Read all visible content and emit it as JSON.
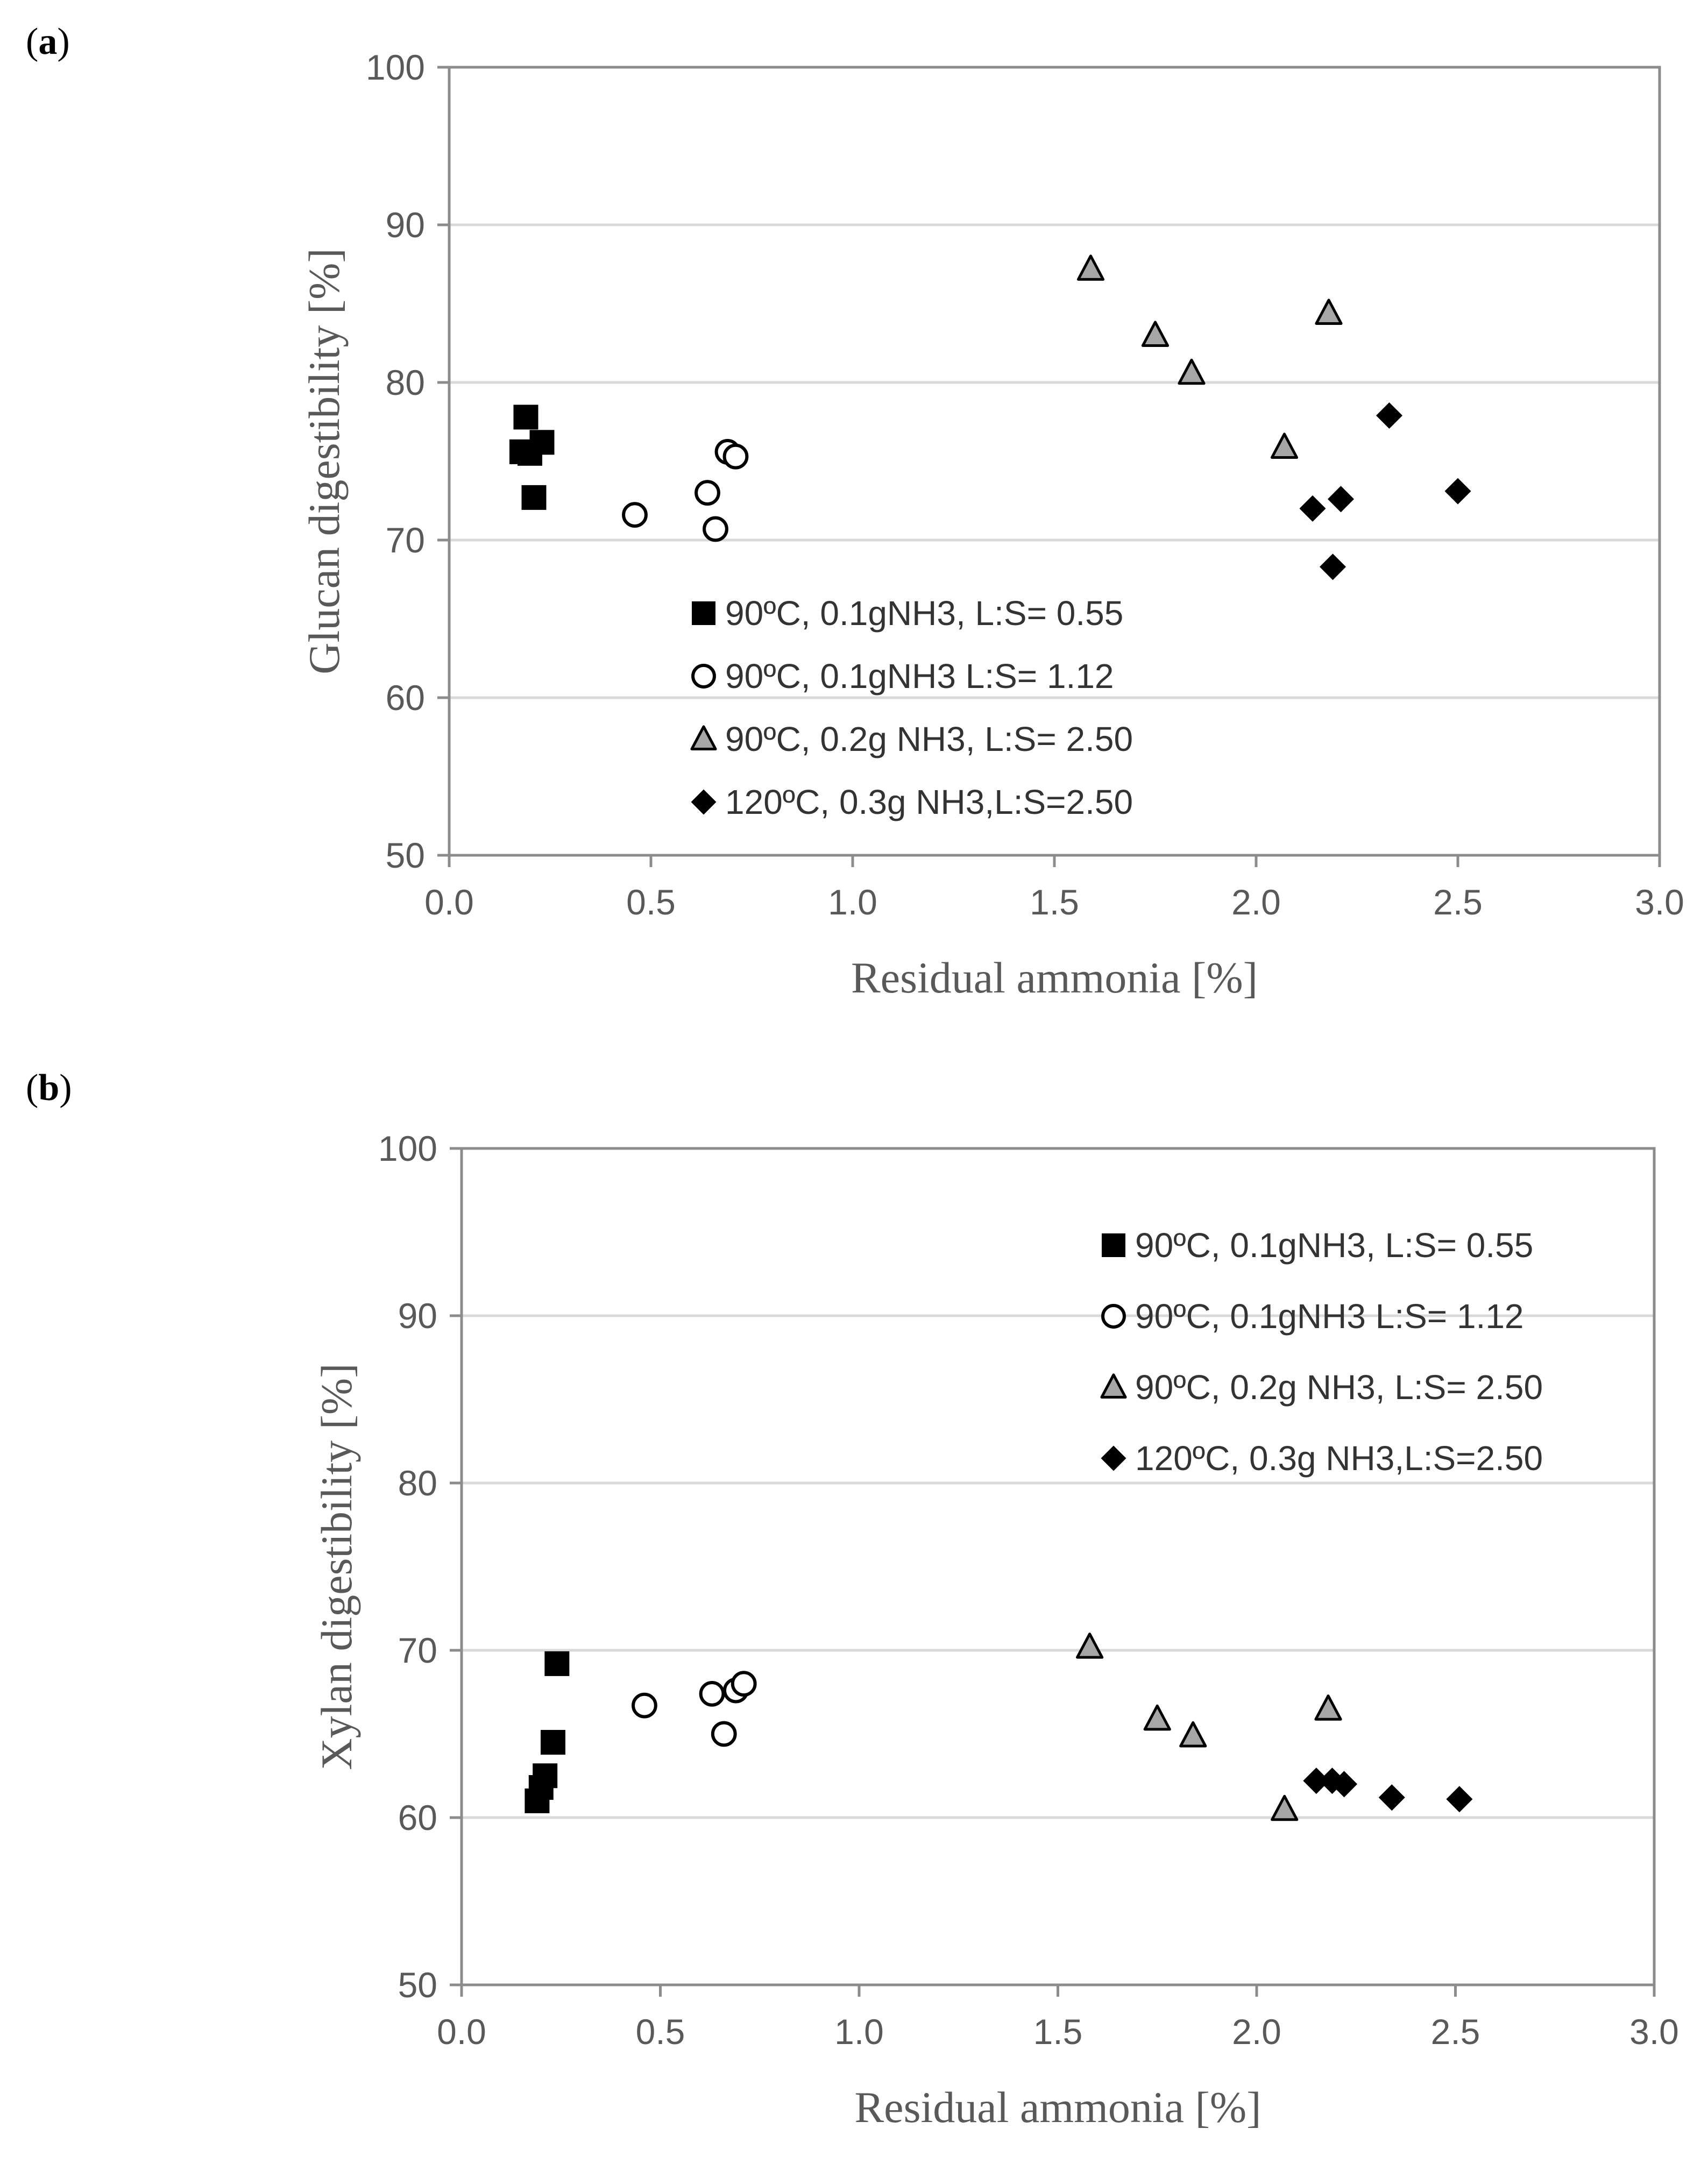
{
  "figure": {
    "panel_a_label": "a",
    "panel_b_label": "b"
  },
  "chart_data": [
    {
      "type": "scatter",
      "id": "a",
      "title": "",
      "xlabel": "Residual ammonia [%]",
      "ylabel": "Glucan digestibility [%]",
      "xlim": [
        0,
        3
      ],
      "ylim": [
        50,
        100
      ],
      "xticks": [
        0.0,
        0.5,
        1.0,
        1.5,
        2.0,
        2.5,
        3.0
      ],
      "xtick_labels": [
        "0.0",
        "0.5",
        "1.0",
        "1.5",
        "2.0",
        "2.5",
        "3.0"
      ],
      "yticks": [
        50,
        60,
        70,
        80,
        90,
        100
      ],
      "ytick_labels": [
        "50",
        "60",
        "70",
        "80",
        "90",
        "100"
      ],
      "grid": "horizontal",
      "legend_position": "center-bottom",
      "series": [
        {
          "name": "90ºC, 0.1gNH3, L:S= 0.55",
          "marker": "square",
          "fill": "#000000",
          "x": [
            0.19,
            0.2,
            0.18,
            0.23,
            0.21
          ],
          "y": [
            77.8,
            75.5,
            75.6,
            76.2,
            72.7
          ]
        },
        {
          "name": "90ºC, 0.1gNH3 L:S= 1.12",
          "marker": "circle",
          "fill": "#ffffff",
          "x": [
            0.46,
            0.64,
            0.66,
            0.69,
            0.71
          ],
          "y": [
            71.6,
            73.0,
            70.7,
            75.6,
            75.3
          ]
        },
        {
          "name": "90ºC, 0.2g NH3, L:S= 2.50",
          "marker": "triangle",
          "fill": "#a6a6a6",
          "x": [
            1.59,
            1.75,
            1.84,
            2.07,
            2.18
          ],
          "y": [
            87.2,
            83.0,
            80.6,
            75.9,
            84.4
          ]
        },
        {
          "name": "120ºC, 0.3g NH3,L:S=2.50",
          "marker": "diamond",
          "fill": "#000000",
          "x": [
            2.14,
            2.19,
            2.21,
            2.33,
            2.5
          ],
          "y": [
            72.0,
            68.3,
            72.6,
            77.9,
            73.1
          ]
        }
      ]
    },
    {
      "type": "scatter",
      "id": "b",
      "title": "",
      "xlabel": "Residual ammonia [%]",
      "ylabel": "Xylan digestibility [%]",
      "xlim": [
        0,
        3
      ],
      "ylim": [
        50,
        100
      ],
      "xticks": [
        0.0,
        0.5,
        1.0,
        1.5,
        2.0,
        2.5,
        3.0
      ],
      "xtick_labels": [
        "0.0",
        "0.5",
        "1.0",
        "1.5",
        "2.0",
        "2.5",
        "3.0"
      ],
      "yticks": [
        50,
        60,
        70,
        80,
        90,
        100
      ],
      "ytick_labels": [
        "50",
        "60",
        "70",
        "80",
        "90",
        "100"
      ],
      "grid": "horizontal",
      "legend_position": "top-right",
      "series": [
        {
          "name": "90ºC, 0.1gNH3, L:S= 0.55",
          "marker": "square",
          "fill": "#000000",
          "x": [
            0.19,
            0.21,
            0.2,
            0.23,
            0.24
          ],
          "y": [
            61.0,
            62.5,
            61.8,
            64.5,
            69.2
          ]
        },
        {
          "name": "90ºC, 0.1gNH3 L:S= 1.12",
          "marker": "circle",
          "fill": "#ffffff",
          "x": [
            0.46,
            0.63,
            0.66,
            0.69,
            0.71
          ],
          "y": [
            66.7,
            67.4,
            65.0,
            67.6,
            68.0
          ]
        },
        {
          "name": "90ºC, 0.2g NH3, L:S= 2.50",
          "marker": "triangle",
          "fill": "#a6a6a6",
          "x": [
            1.58,
            1.75,
            1.84,
            2.07,
            2.18
          ],
          "y": [
            70.2,
            65.9,
            64.9,
            60.5,
            66.5
          ]
        },
        {
          "name": "120ºC, 0.3g NH3,L:S=2.50",
          "marker": "diamond",
          "fill": "#000000",
          "x": [
            2.15,
            2.19,
            2.22,
            2.34,
            2.51
          ],
          "y": [
            62.2,
            62.2,
            62.0,
            61.2,
            61.1
          ]
        }
      ]
    }
  ]
}
